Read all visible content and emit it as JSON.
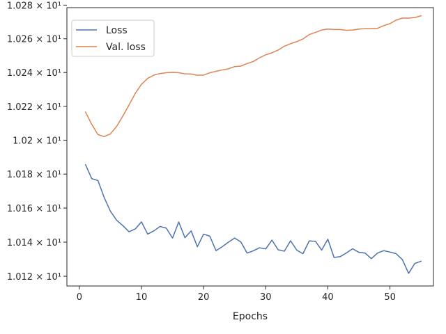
{
  "chart_data": {
    "type": "line",
    "xlabel": "Epochs",
    "ylabel": "",
    "xlim": [
      -2,
      57
    ],
    "ylim": [
      10.1143,
      10.2785
    ],
    "x_ticks": [
      0,
      10,
      20,
      30,
      40,
      50
    ],
    "y_ticks": [
      10.12,
      10.14,
      10.16,
      10.18,
      10.2,
      10.22,
      10.24,
      10.26,
      10.28
    ],
    "y_tick_labels": [
      "1.012 × 10¹",
      "1.014 × 10¹",
      "1.016 × 10¹",
      "1.018 × 10¹",
      "1.02 × 10¹",
      "1.022 × 10¹",
      "1.024 × 10¹",
      "1.026 × 10¹",
      "1.028 × 10¹"
    ],
    "x_tick_labels": [
      "0",
      "10",
      "20",
      "30",
      "40",
      "50"
    ],
    "y_scale": "log",
    "grid": false,
    "legend_position": "top-left",
    "x": [
      1,
      2,
      3,
      4,
      5,
      6,
      7,
      8,
      9,
      10,
      11,
      12,
      13,
      14,
      15,
      16,
      17,
      18,
      19,
      20,
      21,
      22,
      23,
      24,
      25,
      26,
      27,
      28,
      29,
      30,
      31,
      32,
      33,
      34,
      35,
      36,
      37,
      38,
      39,
      40,
      41,
      42,
      43,
      44,
      45,
      46,
      47,
      48,
      49,
      50,
      51,
      52,
      53,
      54,
      55
    ],
    "series": [
      {
        "name": "Loss",
        "color": "#4c72b0",
        "values": [
          10.1855,
          10.1773,
          10.1762,
          10.1662,
          10.1582,
          10.1529,
          10.1497,
          10.1461,
          10.1477,
          10.1519,
          10.1447,
          10.1466,
          10.1492,
          10.1482,
          10.1424,
          10.1518,
          10.1426,
          10.1466,
          10.1373,
          10.1447,
          10.1435,
          10.135,
          10.1373,
          10.14,
          10.1424,
          10.1401,
          10.1336,
          10.1349,
          10.1367,
          10.136,
          10.1412,
          10.1355,
          10.1347,
          10.1408,
          10.1353,
          10.1332,
          10.1407,
          10.1405,
          10.1353,
          10.1417,
          10.131,
          10.1315,
          10.1337,
          10.1361,
          10.134,
          10.1336,
          10.1303,
          10.1336,
          10.135,
          10.1342,
          10.1332,
          10.1297,
          10.1217,
          10.1275,
          10.1288
        ]
      },
      {
        "name": "Val. loss",
        "color": "#dd8452",
        "values": [
          10.2166,
          10.2093,
          10.2033,
          10.2021,
          10.2037,
          10.2081,
          10.2142,
          10.2208,
          10.2276,
          10.233,
          10.2365,
          10.2385,
          10.2394,
          10.2399,
          10.2401,
          10.2399,
          10.2392,
          10.2391,
          10.2384,
          10.2385,
          10.2398,
          10.2407,
          10.2415,
          10.2422,
          10.2435,
          10.2438,
          10.2453,
          10.2465,
          10.2487,
          10.2505,
          10.2517,
          10.2533,
          10.2556,
          10.2571,
          10.2583,
          10.2599,
          10.2625,
          10.2638,
          10.2652,
          10.2658,
          10.2655,
          10.2655,
          10.265,
          10.2652,
          10.2658,
          10.266,
          10.266,
          10.2662,
          10.2678,
          10.269,
          10.2711,
          10.2723,
          10.2723,
          10.2726,
          10.2737
        ]
      }
    ]
  }
}
